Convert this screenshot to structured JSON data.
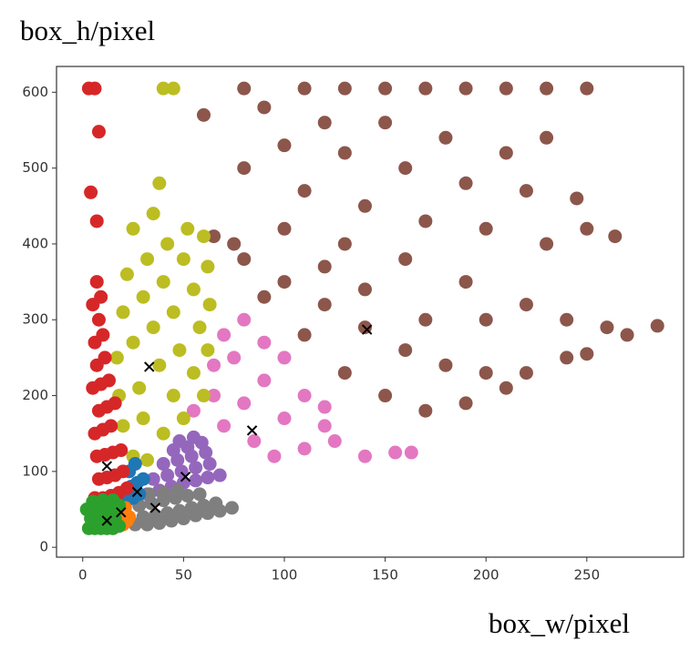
{
  "chart_data": {
    "type": "scatter",
    "y_label": "box_h/pixel",
    "x_label": "box_w/pixel",
    "xlim": [
      -13,
      298
    ],
    "ylim": [
      -13,
      634
    ],
    "xticks": [
      0,
      50,
      100,
      150,
      200,
      250
    ],
    "yticks": [
      0,
      100,
      200,
      300,
      400,
      500,
      600
    ],
    "series": [
      {
        "color": "#8c564b",
        "marker": "o",
        "x": [
          65,
          80,
          100,
          120,
          140,
          160,
          180,
          200,
          220,
          240,
          150,
          170,
          190,
          210,
          130,
          110,
          90,
          75,
          100,
          130,
          160,
          190,
          220,
          240,
          260,
          270,
          285,
          264,
          250,
          230,
          200,
          170,
          140,
          110,
          80,
          100,
          130,
          160,
          190,
          220,
          245,
          60,
          90,
          120,
          150,
          180,
          210,
          230,
          80,
          110,
          130,
          150,
          170,
          190,
          210,
          230,
          250,
          250,
          200,
          170,
          140,
          120
        ],
        "values": [
          410,
          380,
          350,
          320,
          290,
          260,
          240,
          230,
          230,
          250,
          200,
          180,
          190,
          210,
          230,
          280,
          330,
          400,
          420,
          400,
          380,
          350,
          320,
          300,
          290,
          280,
          292,
          410,
          420,
          400,
          420,
          430,
          450,
          470,
          500,
          530,
          520,
          500,
          480,
          470,
          460,
          570,
          580,
          560,
          560,
          540,
          520,
          540,
          605,
          605,
          605,
          605,
          605,
          605,
          605,
          605,
          605,
          255,
          300,
          300,
          340,
          370
        ]
      },
      {
        "color": "#e377c2",
        "marker": "o",
        "x": [
          55,
          65,
          75,
          70,
          80,
          90,
          85,
          100,
          110,
          95,
          110,
          125,
          140,
          155,
          163,
          120,
          70,
          80,
          65,
          100,
          120,
          90
        ],
        "values": [
          180,
          200,
          250,
          160,
          190,
          220,
          140,
          170,
          200,
          120,
          130,
          140,
          120,
          125,
          125,
          160,
          280,
          300,
          240,
          250,
          185,
          270
        ]
      },
      {
        "color": "#bcbd22",
        "marker": "o",
        "x": [
          25,
          32,
          40,
          50,
          60,
          20,
          30,
          45,
          55,
          62,
          18,
          28,
          38,
          48,
          58,
          63,
          17,
          25,
          35,
          45,
          55,
          62,
          20,
          30,
          40,
          50,
          60,
          22,
          32,
          42,
          52,
          25,
          35,
          38,
          40,
          45
        ],
        "values": [
          120,
          115,
          150,
          170,
          200,
          160,
          170,
          200,
          230,
          260,
          200,
          210,
          240,
          260,
          290,
          320,
          250,
          270,
          290,
          310,
          340,
          370,
          310,
          330,
          350,
          380,
          410,
          360,
          380,
          400,
          420,
          420,
          440,
          480,
          605,
          605
        ]
      },
      {
        "color": "#9467bd",
        "marker": "o",
        "x": [
          32,
          38,
          44,
          50,
          56,
          62,
          68,
          35,
          42,
          49,
          56,
          63,
          40,
          47,
          54,
          61,
          45,
          52,
          59,
          48,
          55
        ],
        "values": [
          70,
          75,
          80,
          85,
          88,
          92,
          95,
          90,
          95,
          100,
          105,
          110,
          110,
          115,
          120,
          125,
          128,
          132,
          138,
          140,
          145
        ]
      },
      {
        "color": "#7f7f7f",
        "marker": "o",
        "x": [
          26,
          32,
          38,
          44,
          50,
          56,
          62,
          68,
          74,
          30,
          36,
          42,
          48,
          54,
          60,
          66,
          28,
          34,
          40,
          46,
          52,
          58,
          33,
          40,
          47
        ],
        "values": [
          30,
          30,
          32,
          35,
          38,
          42,
          45,
          48,
          52,
          40,
          42,
          45,
          48,
          52,
          55,
          58,
          55,
          58,
          62,
          65,
          68,
          70,
          70,
          72,
          75
        ]
      },
      {
        "color": "#1f77b4",
        "marker": "o",
        "x": [
          22,
          25,
          28,
          24,
          27,
          30,
          23,
          26
        ],
        "values": [
          62,
          65,
          70,
          80,
          85,
          90,
          100,
          110
        ]
      },
      {
        "color": "#d62728",
        "marker": "o",
        "x": [
          6,
          10,
          14,
          18,
          22,
          8,
          12,
          16,
          20,
          7,
          11,
          15,
          19,
          6,
          10,
          14,
          8,
          12,
          16,
          5,
          9,
          13,
          7,
          11,
          6,
          10,
          8,
          5,
          9,
          7,
          3,
          6,
          8,
          4,
          7
        ],
        "values": [
          65,
          65,
          68,
          72,
          78,
          90,
          92,
          95,
          100,
          120,
          122,
          125,
          128,
          150,
          155,
          160,
          180,
          185,
          190,
          210,
          215,
          220,
          240,
          250,
          270,
          280,
          300,
          320,
          330,
          350,
          605,
          605,
          548,
          468,
          430
        ]
      },
      {
        "color": "#ff7f0e",
        "marker": "o",
        "x": [
          17,
          20,
          22,
          19,
          23,
          21
        ],
        "values": [
          28,
          30,
          35,
          45,
          40,
          52
        ]
      },
      {
        "color": "#2ca02c",
        "marker": "o",
        "x": [
          3,
          6,
          9,
          12,
          15,
          18,
          4,
          8,
          12,
          16,
          2,
          6,
          10,
          14,
          18,
          5,
          10,
          15
        ],
        "values": [
          25,
          25,
          25,
          25,
          25,
          28,
          38,
          38,
          38,
          38,
          50,
          50,
          50,
          50,
          55,
          60,
          62,
          62
        ]
      },
      {
        "color": "#000000",
        "marker": "x",
        "x": [
          12,
          19,
          27,
          36,
          51,
          12,
          33,
          84,
          141
        ],
        "values": [
          35,
          46,
          73,
          52,
          93,
          107,
          238,
          154,
          287
        ]
      }
    ]
  }
}
